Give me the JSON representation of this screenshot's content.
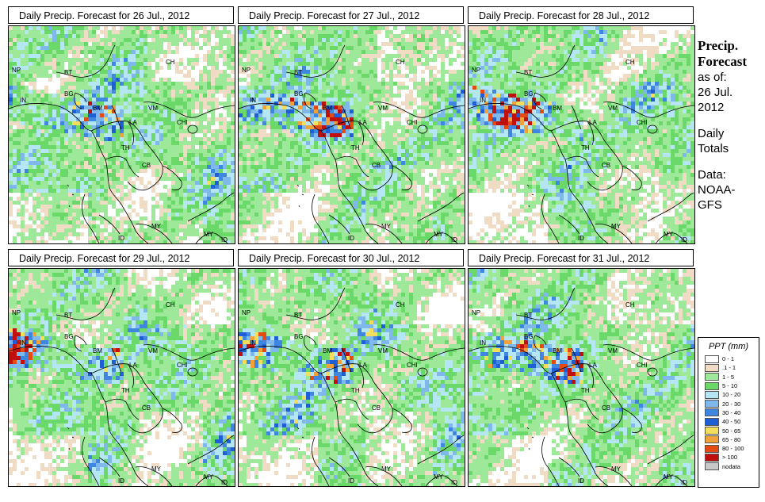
{
  "panels": [
    {
      "title": "Daily Precip. Forecast for  26 Jul., 2012",
      "seed": 11
    },
    {
      "title": "Daily Precip. Forecast for  27 Jul., 2012",
      "seed": 27
    },
    {
      "title": "Daily Precip. Forecast for  28 Jul., 2012",
      "seed": 43
    },
    {
      "title": "Daily Precip. Forecast for  29 Jul., 2012",
      "seed": 59
    },
    {
      "title": "Daily Precip. Forecast for  30 Jul., 2012",
      "seed": 71
    },
    {
      "title": "Daily Precip. Forecast for  31 Jul., 2012",
      "seed": 89
    }
  ],
  "country_labels": [
    "NP",
    "BT",
    "IN",
    "BG",
    "CH",
    "BM",
    "VM",
    "LA",
    "CHI",
    "TH",
    "CB",
    "MY",
    "ID",
    "MY",
    "ID"
  ],
  "caption": {
    "title_line1": "Precip.",
    "title_line2": "Forecast",
    "as_of": "as of:",
    "date_line1": "26 Jul.",
    "date_line2": "2012",
    "daily_line1": "Daily",
    "daily_line2": "Totals",
    "data_line1": "Data:",
    "data_line2": "NOAA-",
    "data_line3": "GFS"
  },
  "legend": {
    "title": "PPT (mm)",
    "items": [
      {
        "label": "0 - 1",
        "color": "#ffffff"
      },
      {
        "label": ".1 - 1",
        "color": "#f0dcc4"
      },
      {
        "label": "1 - 5",
        "color": "#9ee89a"
      },
      {
        "label": "5 - 10",
        "color": "#6bd96a"
      },
      {
        "label": "10 - 20",
        "color": "#b4e6f4"
      },
      {
        "label": "20 - 30",
        "color": "#7fb9ec"
      },
      {
        "label": "30 - 40",
        "color": "#3f86e0"
      },
      {
        "label": "40 - 50",
        "color": "#1f5fd6"
      },
      {
        "label": "50 - 65",
        "color": "#f4de5c"
      },
      {
        "label": "65 - 80",
        "color": "#f2a23a"
      },
      {
        "label": "80 - 100",
        "color": "#e44b14"
      },
      {
        "label": "> 100",
        "color": "#c0100e"
      },
      {
        "label": "nodata",
        "color": "#c8c8c8"
      }
    ]
  }
}
